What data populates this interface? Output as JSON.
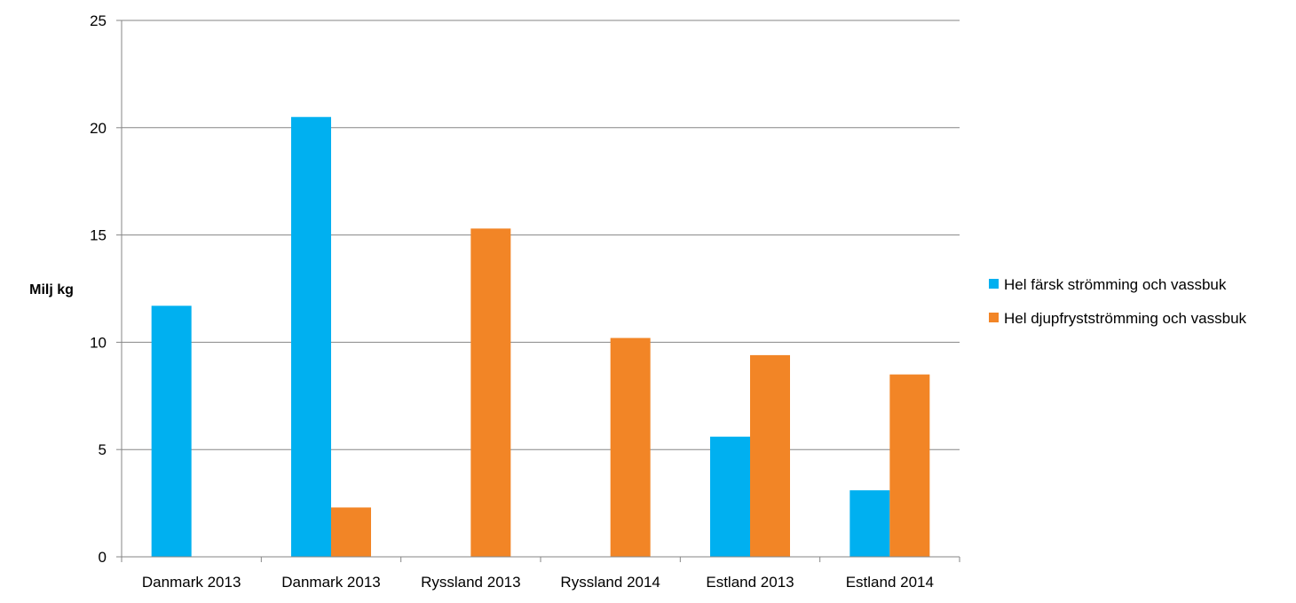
{
  "chart_data": {
    "type": "bar",
    "ylabel": "Milj kg",
    "xlabel": "",
    "ylim": [
      0,
      25
    ],
    "yticks": [
      0,
      5,
      10,
      15,
      20,
      25
    ],
    "grid": true,
    "legend_position": "right",
    "categories": [
      "Danmark 2013",
      "Danmark 2013",
      "Ryssland 2013",
      "Ryssland 2014",
      "Estland 2013",
      "Estland 2014"
    ],
    "series": [
      {
        "name": "Hel färsk strömming och vassbuk",
        "color": "#00b0f0",
        "values": [
          11.7,
          20.5,
          null,
          null,
          5.6,
          3.1
        ]
      },
      {
        "name": "Hel djupfrystströmming och vassbuk",
        "color": "#f28526",
        "values": [
          null,
          2.3,
          15.3,
          10.2,
          9.4,
          8.5
        ]
      }
    ]
  }
}
